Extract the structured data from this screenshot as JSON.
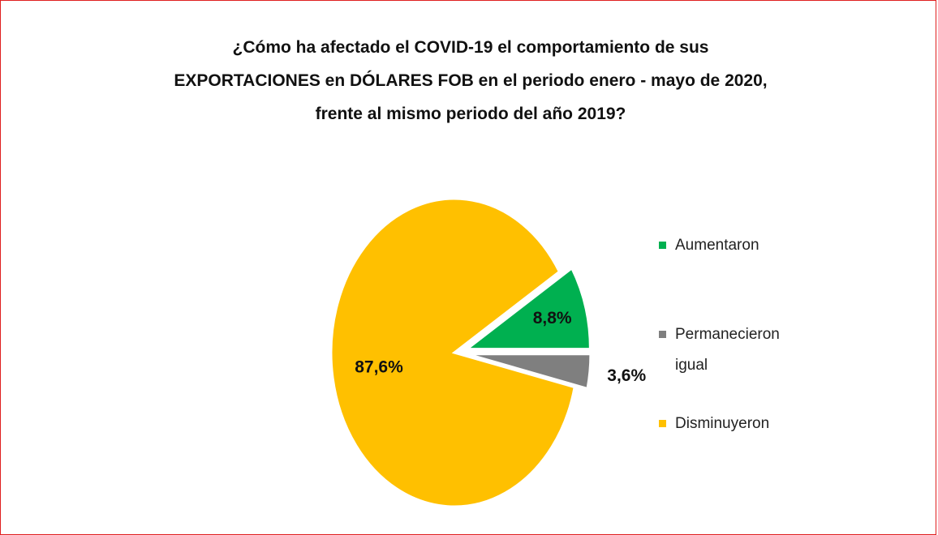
{
  "chart_data": {
    "type": "pie",
    "title": "¿Cómo ha afectado el COVID-19 el comportamiento de sus EXPORTACIONES en DÓLARES FOB en el periodo enero - mayo de 2020, frente al mismo periodo del año 2019?",
    "categories": [
      "Aumentaron",
      "Permanecieron igual",
      "Disminuyeron"
    ],
    "values": [
      8.8,
      3.6,
      87.6
    ],
    "value_labels": [
      "8,8%",
      "3,6%",
      "87,6%"
    ],
    "colors": [
      "#00b050",
      "#7f7f7f",
      "#ffc000"
    ],
    "legend": "right"
  }
}
